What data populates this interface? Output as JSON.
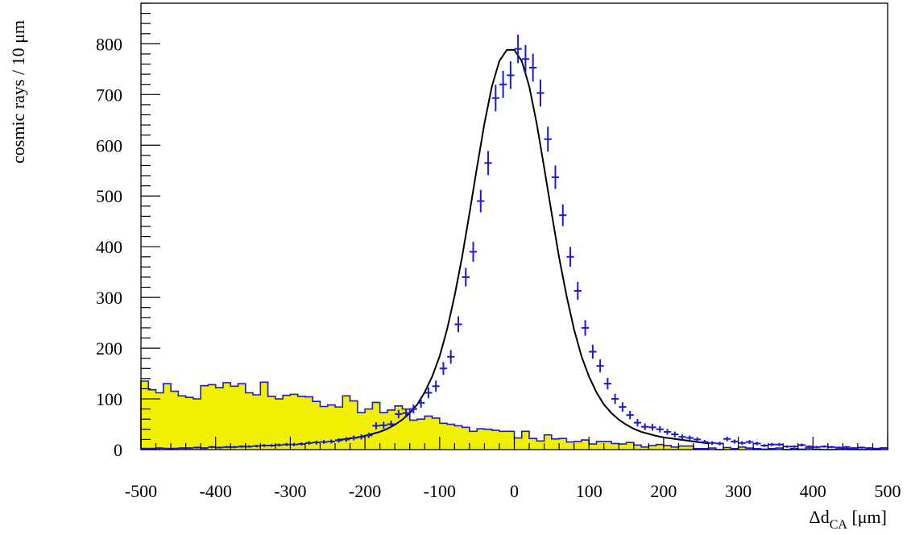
{
  "chart_data": {
    "type": "histogram",
    "title": "",
    "xlabel": {
      "main": "Δd",
      "sub": "CA",
      "unit": " [μm]"
    },
    "ylabel": "cosmic rays / 10 μm",
    "xlim": [
      -500,
      500
    ],
    "ylim": [
      0,
      880
    ],
    "x_ticks": [
      -500,
      -400,
      -300,
      -200,
      -100,
      0,
      100,
      200,
      300,
      400,
      500
    ],
    "x_tick_labels": [
      "-500",
      "-400",
      "-300",
      "-200",
      "-100",
      "0",
      "100",
      "200",
      "300",
      "400",
      "500"
    ],
    "y_ticks": [
      0,
      100,
      200,
      300,
      400,
      500,
      600,
      700,
      800
    ],
    "y_tick_labels": [
      "0",
      "100",
      "200",
      "300",
      "400",
      "500",
      "600",
      "700",
      "800"
    ],
    "bin_width": 10,
    "grid": false,
    "colors": {
      "fill": "#f0f000",
      "outline": "#1a1ad6",
      "points": "#1a1ad6",
      "fit": "#000000"
    },
    "series": [
      {
        "kind": "filled-histogram",
        "bin_low": [
          -500,
          -490,
          -480,
          -470,
          -460,
          -450,
          -440,
          -430,
          -420,
          -410,
          -400,
          -390,
          -380,
          -370,
          -360,
          -350,
          -340,
          -330,
          -320,
          -310,
          -300,
          -290,
          -280,
          -270,
          -260,
          -250,
          -240,
          -230,
          -220,
          -210,
          -200,
          -190,
          -180,
          -170,
          -160,
          -150,
          -140,
          -130,
          -120,
          -110,
          -100,
          -90,
          -80,
          -70,
          -60,
          -50,
          -40,
          -30,
          -20,
          -10,
          0,
          10,
          20,
          30,
          40,
          50,
          60,
          70,
          80,
          90,
          100,
          110,
          120,
          130,
          140,
          150,
          160,
          170,
          180,
          190,
          200,
          210,
          220,
          230,
          240,
          250,
          260,
          270,
          280,
          290,
          300,
          310,
          320,
          330,
          340,
          350,
          360,
          370,
          380,
          390,
          400,
          410,
          420,
          430,
          440,
          450,
          460,
          470,
          480,
          490
        ],
        "values": [
          135,
          118,
          112,
          130,
          115,
          106,
          103,
          100,
          126,
          128,
          122,
          132,
          125,
          130,
          112,
          108,
          133,
          105,
          100,
          107,
          109,
          105,
          104,
          95,
          85,
          88,
          84,
          106,
          96,
          73,
          80,
          93,
          73,
          78,
          86,
          80,
          58,
          60,
          66,
          62,
          52,
          50,
          47,
          44,
          36,
          41,
          40,
          38,
          36,
          36,
          23,
          36,
          22,
          17,
          29,
          21,
          22,
          15,
          16,
          19,
          11,
          16,
          16,
          12,
          11,
          14,
          9,
          5,
          8,
          10,
          8,
          5,
          7,
          7,
          2,
          2,
          3,
          0,
          4,
          2,
          5,
          3,
          2,
          1,
          2,
          3,
          0,
          2,
          1,
          3,
          1,
          0,
          0,
          1,
          2,
          0,
          0,
          0,
          0,
          3
        ]
      },
      {
        "kind": "data-points",
        "x": [
          -495,
          -485,
          -475,
          -465,
          -455,
          -445,
          -435,
          -425,
          -415,
          -405,
          -395,
          -385,
          -375,
          -365,
          -355,
          -345,
          -335,
          -325,
          -315,
          -305,
          -295,
          -285,
          -275,
          -265,
          -255,
          -245,
          -235,
          -225,
          -215,
          -205,
          -195,
          -185,
          -175,
          -165,
          -155,
          -145,
          -135,
          -125,
          -115,
          -105,
          -95,
          -85,
          -75,
          -65,
          -55,
          -45,
          -35,
          -25,
          -15,
          -5,
          5,
          15,
          25,
          35,
          45,
          55,
          65,
          75,
          85,
          95,
          105,
          115,
          125,
          135,
          145,
          155,
          165,
          175,
          185,
          195,
          205,
          215,
          225,
          235,
          245,
          255,
          265,
          275,
          285,
          295,
          305,
          315,
          325,
          335,
          345,
          355,
          365,
          375,
          385,
          395,
          405,
          415,
          425,
          435,
          445,
          455,
          465,
          475,
          485,
          495
        ],
        "y": [
          2,
          2,
          3,
          2,
          2,
          3,
          3,
          4,
          3,
          5,
          4,
          5,
          5,
          6,
          6,
          7,
          8,
          8,
          9,
          10,
          10,
          11,
          13,
          14,
          15,
          16,
          18,
          20,
          23,
          25,
          28,
          47,
          48,
          50,
          70,
          72,
          80,
          92,
          112,
          125,
          160,
          183,
          247,
          340,
          390,
          490,
          565,
          693,
          720,
          738,
          790,
          770,
          753,
          703,
          612,
          537,
          462,
          380,
          313,
          240,
          193,
          165,
          130,
          100,
          84,
          68,
          53,
          45,
          44,
          40,
          35,
          30,
          25,
          23,
          20,
          15,
          13,
          12,
          21,
          16,
          13,
          15,
          12,
          8,
          10,
          10,
          6,
          6,
          9,
          6,
          5,
          6,
          5,
          4,
          5,
          3,
          4,
          3,
          2,
          3
        ],
        "errors": [
          1.4,
          1.4,
          1.7,
          1.4,
          1.4,
          1.7,
          1.7,
          2,
          1.7,
          2.2,
          2,
          2.2,
          2.2,
          2.4,
          2.4,
          2.6,
          2.8,
          2.8,
          3,
          3.2,
          3.2,
          3.3,
          3.6,
          3.7,
          3.9,
          4,
          4.2,
          4.5,
          4.8,
          5,
          5.3,
          6.9,
          6.9,
          7.1,
          8.4,
          8.5,
          8.9,
          9.6,
          10.6,
          11.2,
          12.6,
          13.5,
          15.7,
          18.4,
          19.7,
          22.1,
          23.8,
          26.3,
          26.8,
          27.2,
          28.1,
          27.7,
          27.4,
          26.5,
          24.7,
          23.2,
          21.5,
          19.5,
          17.7,
          15.5,
          13.9,
          12.8,
          11.4,
          10,
          9.2,
          8.2,
          7.3,
          6.7,
          6.6,
          6.3,
          5.9,
          5.5,
          5,
          4.8,
          4.5,
          3.9,
          3.6,
          3.5,
          4.6,
          4,
          3.6,
          3.9,
          3.5,
          2.8,
          3.2,
          3.2,
          2.4,
          2.4,
          3,
          2.4,
          2.2,
          2.4,
          2.2,
          2,
          2.2,
          1.7,
          2,
          1.7,
          1.4,
          1.7
        ]
      },
      {
        "kind": "fit-curve",
        "x": [
          -240,
          -230,
          -220,
          -210,
          -200,
          -190,
          -180,
          -170,
          -160,
          -150,
          -140,
          -130,
          -120,
          -110,
          -100,
          -90,
          -80,
          -70,
          -60,
          -50,
          -40,
          -30,
          -20,
          -10,
          0,
          10,
          20,
          30,
          40,
          50,
          60,
          70,
          80,
          90,
          100,
          110,
          120,
          130,
          140,
          150,
          160,
          170,
          180,
          190,
          200,
          210,
          220,
          230,
          240,
          250,
          260
        ],
        "y": [
          18,
          20,
          22,
          24,
          27,
          31,
          35,
          41,
          49,
          59,
          72,
          89,
          113,
          144,
          184,
          237,
          303,
          379,
          466,
          556,
          643,
          716,
          766,
          788,
          788,
          766,
          716,
          643,
          556,
          466,
          379,
          303,
          237,
          184,
          144,
          113,
          89,
          72,
          59,
          49,
          41,
          35,
          31,
          27,
          24,
          22,
          20,
          18,
          16,
          14,
          12
        ]
      }
    ]
  }
}
